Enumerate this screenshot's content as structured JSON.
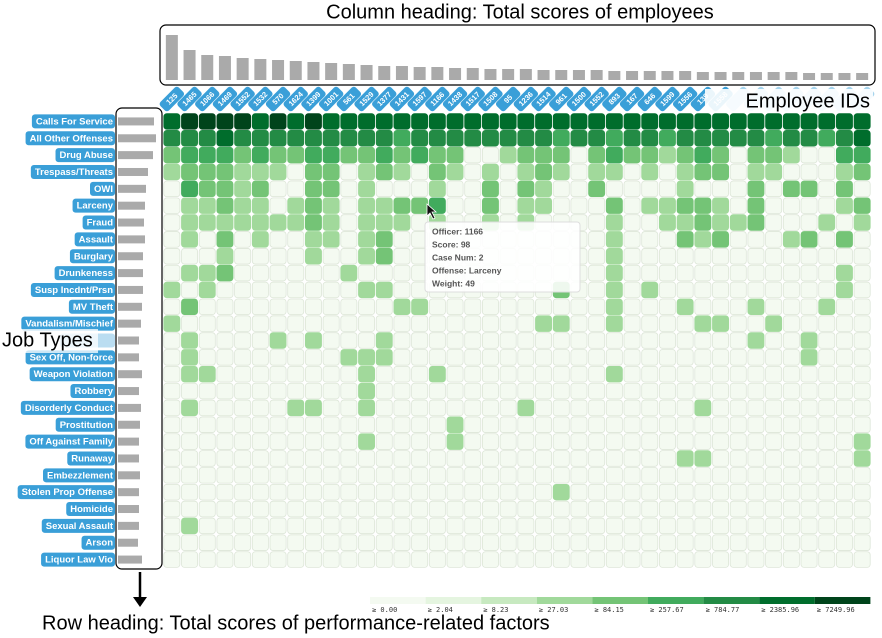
{
  "chart_data": {
    "type": "heatmap",
    "annotations": {
      "column_heading": "Column heading: Total scores of employees",
      "employee_ids": "Employee IDs",
      "job_types": "Job Types",
      "row_heading": "Row heading: Total scores of performance-related factors"
    },
    "employees": [
      "125",
      "1465",
      "1066",
      "1469",
      "1552",
      "1532",
      "570",
      "1624",
      "1399",
      "1001",
      "561",
      "1529",
      "1377",
      "1431",
      "1597",
      "1166",
      "1438",
      "1517",
      "1508",
      "95",
      "1236",
      "1514",
      "961",
      "1500",
      "1552",
      "893",
      "167",
      "646",
      "1599",
      "1556",
      "139",
      "1558",
      null,
      null,
      null,
      null,
      null,
      null,
      null,
      null
    ],
    "column_totals": [
      45,
      30,
      25,
      24,
      22,
      21,
      20,
      19,
      18,
      17,
      16,
      15,
      14,
      14,
      13,
      13,
      12,
      12,
      11,
      11,
      11,
      10,
      10,
      10,
      10,
      9,
      9,
      9,
      9,
      9,
      8,
      8,
      8,
      8,
      8,
      8,
      7,
      7,
      7,
      7
    ],
    "column_lim": [
      0,
      50
    ],
    "job_types": [
      "Calls For Service",
      "All Other Offenses",
      "Drug Abuse",
      "Trespass/Threats",
      "OWI",
      "Larceny",
      "Fraud",
      "Assault",
      "Burglary",
      "Drunkeness",
      "Susp Incdnt/Prsn",
      "MV Theft",
      "Vandalism/Mischief",
      null,
      "Sex Off, Non-force",
      "Weapon Violation",
      "Robbery",
      "Disorderly Conduct",
      "Prostitution",
      "Off Against Family",
      "Runaway",
      "Embezzlement",
      "Stolen Prop Offense",
      "Homicide",
      "Sexual Assault",
      "Arson",
      "Liquor Law Vio"
    ],
    "row_totals": [
      36,
      38,
      35,
      30,
      28,
      27,
      26,
      27,
      25,
      25,
      25,
      24,
      23,
      21,
      21,
      24,
      21,
      23,
      22,
      21,
      21,
      22,
      21,
      21,
      21,
      20,
      24
    ],
    "row_lim": [
      0,
      40
    ],
    "bins": [
      [
        7,
        8,
        8,
        8,
        8,
        7,
        8,
        7,
        8,
        7,
        7,
        7,
        7,
        7,
        7,
        7,
        7,
        7,
        7,
        7,
        7,
        7,
        7,
        7,
        7,
        7,
        7,
        7,
        7,
        7,
        7,
        7,
        7,
        7,
        7,
        7,
        7,
        7,
        7,
        7
      ],
      [
        6,
        6,
        6,
        7,
        6,
        6,
        6,
        6,
        6,
        6,
        6,
        6,
        6,
        5,
        6,
        6,
        6,
        6,
        6,
        6,
        6,
        6,
        5,
        6,
        6,
        5,
        6,
        6,
        5,
        6,
        6,
        6,
        6,
        6,
        5,
        6,
        6,
        5,
        6,
        7
      ],
      [
        4,
        5,
        5,
        5,
        4,
        5,
        4,
        4,
        5,
        5,
        4,
        4,
        5,
        4,
        5,
        4,
        4,
        0,
        0,
        3,
        4,
        4,
        4,
        0,
        4,
        5,
        4,
        4,
        3,
        4,
        5,
        4,
        0,
        4,
        4,
        3,
        0,
        0,
        5,
        5
      ],
      [
        3,
        4,
        4,
        4,
        3,
        3,
        3,
        0,
        4,
        4,
        0,
        3,
        4,
        3,
        0,
        4,
        3,
        0,
        3,
        0,
        3,
        4,
        3,
        0,
        3,
        3,
        0,
        3,
        0,
        3,
        4,
        4,
        0,
        3,
        3,
        0,
        0,
        0,
        3,
        4
      ],
      [
        0,
        5,
        4,
        4,
        3,
        4,
        0,
        0,
        4,
        4,
        0,
        3,
        0,
        0,
        0,
        3,
        0,
        0,
        4,
        0,
        4,
        3,
        0,
        0,
        4,
        0,
        0,
        0,
        0,
        3,
        0,
        0,
        0,
        4,
        0,
        4,
        4,
        0,
        4,
        0
      ],
      [
        0,
        3,
        3,
        4,
        3,
        3,
        0,
        3,
        4,
        3,
        0,
        3,
        3,
        4,
        4,
        5,
        0,
        0,
        4,
        0,
        3,
        3,
        0,
        0,
        0,
        4,
        0,
        3,
        3,
        4,
        4,
        3,
        0,
        4,
        0,
        0,
        0,
        0,
        3,
        4
      ],
      [
        0,
        3,
        3,
        3,
        3,
        3,
        3,
        3,
        4,
        3,
        0,
        3,
        3,
        3,
        0,
        3,
        0,
        0,
        3,
        0,
        3,
        0,
        0,
        0,
        0,
        3,
        0,
        0,
        3,
        3,
        4,
        3,
        3,
        4,
        0,
        0,
        0,
        3,
        0,
        3
      ],
      [
        0,
        3,
        0,
        4,
        0,
        3,
        0,
        0,
        3,
        3,
        0,
        3,
        4,
        0,
        0,
        0,
        0,
        0,
        0,
        0,
        0,
        0,
        0,
        0,
        0,
        3,
        0,
        0,
        0,
        4,
        3,
        4,
        0,
        0,
        0,
        3,
        4,
        0,
        4,
        0
      ],
      [
        0,
        0,
        0,
        3,
        0,
        0,
        0,
        0,
        3,
        0,
        0,
        3,
        4,
        0,
        0,
        0,
        0,
        0,
        0,
        0,
        0,
        0,
        0,
        0,
        0,
        3,
        0,
        0,
        0,
        0,
        0,
        0,
        0,
        0,
        0,
        0,
        0,
        0,
        0,
        0
      ],
      [
        0,
        3,
        3,
        4,
        0,
        0,
        0,
        0,
        0,
        0,
        3,
        0,
        0,
        0,
        0,
        0,
        0,
        0,
        0,
        0,
        0,
        0,
        0,
        0,
        0,
        3,
        0,
        0,
        0,
        0,
        0,
        0,
        0,
        0,
        0,
        0,
        0,
        0,
        3,
        0
      ],
      [
        3,
        0,
        3,
        0,
        0,
        0,
        0,
        0,
        0,
        0,
        0,
        3,
        3,
        0,
        0,
        0,
        0,
        0,
        0,
        0,
        0,
        0,
        4,
        0,
        0,
        3,
        0,
        3,
        0,
        0,
        0,
        0,
        0,
        0,
        0,
        0,
        0,
        0,
        3,
        0
      ],
      [
        0,
        4,
        0,
        0,
        0,
        0,
        0,
        0,
        0,
        0,
        0,
        0,
        0,
        3,
        3,
        0,
        0,
        0,
        0,
        0,
        0,
        0,
        0,
        0,
        0,
        3,
        0,
        0,
        0,
        3,
        0,
        0,
        0,
        3,
        0,
        0,
        0,
        3,
        0,
        0
      ],
      [
        3,
        0,
        0,
        0,
        0,
        0,
        0,
        0,
        0,
        0,
        0,
        0,
        0,
        0,
        0,
        0,
        0,
        0,
        0,
        0,
        0,
        3,
        3,
        0,
        0,
        3,
        0,
        0,
        0,
        0,
        3,
        3,
        0,
        0,
        3,
        0,
        0,
        0,
        0,
        0
      ],
      [
        0,
        3,
        0,
        0,
        0,
        0,
        3,
        0,
        3,
        0,
        0,
        0,
        3,
        0,
        0,
        0,
        0,
        0,
        0,
        0,
        0,
        0,
        0,
        0,
        0,
        0,
        0,
        0,
        0,
        0,
        0,
        0,
        0,
        3,
        0,
        0,
        3,
        0,
        0,
        0
      ],
      [
        0,
        3,
        0,
        0,
        0,
        0,
        0,
        0,
        0,
        0,
        3,
        3,
        3,
        0,
        0,
        0,
        0,
        0,
        0,
        0,
        0,
        0,
        0,
        0,
        0,
        0,
        0,
        0,
        0,
        0,
        0,
        0,
        0,
        0,
        0,
        0,
        3,
        0,
        0,
        0
      ],
      [
        0,
        3,
        3,
        0,
        0,
        0,
        0,
        0,
        0,
        0,
        0,
        3,
        0,
        0,
        0,
        3,
        0,
        0,
        0,
        0,
        0,
        0,
        0,
        0,
        0,
        3,
        0,
        0,
        0,
        0,
        0,
        0,
        0,
        0,
        0,
        0,
        0,
        0,
        0,
        0
      ],
      [
        0,
        0,
        0,
        0,
        0,
        0,
        0,
        0,
        0,
        0,
        0,
        3,
        0,
        0,
        0,
        0,
        0,
        0,
        0,
        0,
        0,
        0,
        0,
        0,
        0,
        0,
        0,
        0,
        0,
        0,
        0,
        0,
        0,
        0,
        0,
        0,
        0,
        0,
        0,
        0
      ],
      [
        0,
        3,
        0,
        0,
        0,
        0,
        0,
        3,
        3,
        0,
        0,
        3,
        0,
        0,
        0,
        0,
        0,
        0,
        0,
        0,
        3,
        0,
        0,
        0,
        0,
        0,
        0,
        0,
        0,
        0,
        3,
        0,
        0,
        0,
        0,
        0,
        0,
        0,
        0,
        0
      ],
      [
        0,
        0,
        0,
        0,
        0,
        0,
        0,
        0,
        0,
        0,
        0,
        0,
        0,
        0,
        0,
        0,
        3,
        0,
        0,
        0,
        0,
        0,
        0,
        0,
        0,
        0,
        0,
        0,
        0,
        0,
        0,
        0,
        0,
        0,
        0,
        0,
        0,
        0,
        0,
        0
      ],
      [
        0,
        0,
        0,
        0,
        0,
        0,
        0,
        0,
        0,
        0,
        0,
        3,
        0,
        0,
        0,
        0,
        3,
        0,
        0,
        0,
        0,
        0,
        0,
        0,
        0,
        0,
        0,
        0,
        0,
        0,
        0,
        0,
        0,
        0,
        0,
        0,
        0,
        0,
        0,
        3
      ],
      [
        0,
        0,
        0,
        0,
        0,
        0,
        0,
        0,
        0,
        0,
        0,
        0,
        0,
        0,
        0,
        0,
        0,
        0,
        0,
        0,
        0,
        0,
        0,
        0,
        0,
        0,
        0,
        0,
        0,
        3,
        3,
        0,
        0,
        0,
        0,
        0,
        0,
        0,
        0,
        3
      ],
      [
        0,
        0,
        0,
        0,
        0,
        0,
        0,
        0,
        0,
        0,
        0,
        0,
        0,
        0,
        0,
        0,
        0,
        0,
        0,
        0,
        0,
        0,
        0,
        0,
        0,
        0,
        0,
        0,
        0,
        0,
        0,
        0,
        0,
        0,
        0,
        0,
        0,
        0,
        0,
        0
      ],
      [
        0,
        0,
        0,
        0,
        0,
        0,
        0,
        0,
        0,
        0,
        0,
        0,
        0,
        0,
        0,
        0,
        0,
        0,
        0,
        0,
        0,
        0,
        3,
        0,
        0,
        0,
        0,
        0,
        0,
        0,
        0,
        0,
        0,
        0,
        0,
        0,
        0,
        0,
        0,
        0
      ],
      [
        0,
        0,
        0,
        0,
        0,
        0,
        0,
        0,
        0,
        0,
        0,
        0,
        0,
        0,
        0,
        0,
        0,
        0,
        0,
        0,
        0,
        0,
        0,
        0,
        0,
        0,
        0,
        0,
        0,
        0,
        0,
        0,
        0,
        0,
        0,
        0,
        0,
        0,
        0,
        0
      ],
      [
        0,
        3,
        0,
        0,
        0,
        0,
        0,
        0,
        0,
        0,
        0,
        0,
        0,
        0,
        0,
        0,
        0,
        0,
        0,
        0,
        0,
        0,
        0,
        0,
        0,
        0,
        0,
        0,
        0,
        0,
        0,
        0,
        0,
        0,
        0,
        0,
        0,
        0,
        0,
        0
      ],
      [
        0,
        0,
        0,
        0,
        0,
        0,
        0,
        0,
        0,
        0,
        0,
        0,
        0,
        0,
        0,
        0,
        0,
        0,
        0,
        0,
        0,
        0,
        0,
        0,
        0,
        0,
        0,
        0,
        0,
        0,
        0,
        0,
        0,
        0,
        0,
        0,
        0,
        0,
        0,
        0
      ],
      [
        0,
        0,
        0,
        0,
        0,
        0,
        0,
        0,
        0,
        0,
        0,
        0,
        0,
        0,
        0,
        0,
        0,
        0,
        0,
        0,
        0,
        0,
        0,
        0,
        0,
        0,
        0,
        0,
        0,
        0,
        0,
        0,
        0,
        0,
        0,
        0,
        0,
        0,
        0,
        0
      ]
    ],
    "legend": [
      {
        "value": 0.0,
        "label": "≥ 0.00",
        "color": "#f4faf1"
      },
      {
        "value": 2.04,
        "label": "≥ 2.04",
        "color": "#e5f5e0"
      },
      {
        "value": 8.23,
        "label": "≥ 8.23",
        "color": "#c7e9c0"
      },
      {
        "value": 27.03,
        "label": "≥ 27.03",
        "color": "#a1d99b"
      },
      {
        "value": 84.15,
        "label": "≥ 84.15",
        "color": "#74c476"
      },
      {
        "value": 257.67,
        "label": "≥ 257.67",
        "color": "#41ab5d"
      },
      {
        "value": 784.77,
        "label": "≥ 784.77",
        "color": "#238b45"
      },
      {
        "value": 2385.96,
        "label": "≥ 2385.96",
        "color": "#006d2c"
      },
      {
        "value": 7249.96,
        "label": "≥ 7249.96",
        "color": "#00441b"
      }
    ],
    "tooltip": [
      "Officer: 1166",
      "Score: 98",
      "Case Num: 2",
      "Offense: Larceny",
      "Weight: 49"
    ]
  }
}
